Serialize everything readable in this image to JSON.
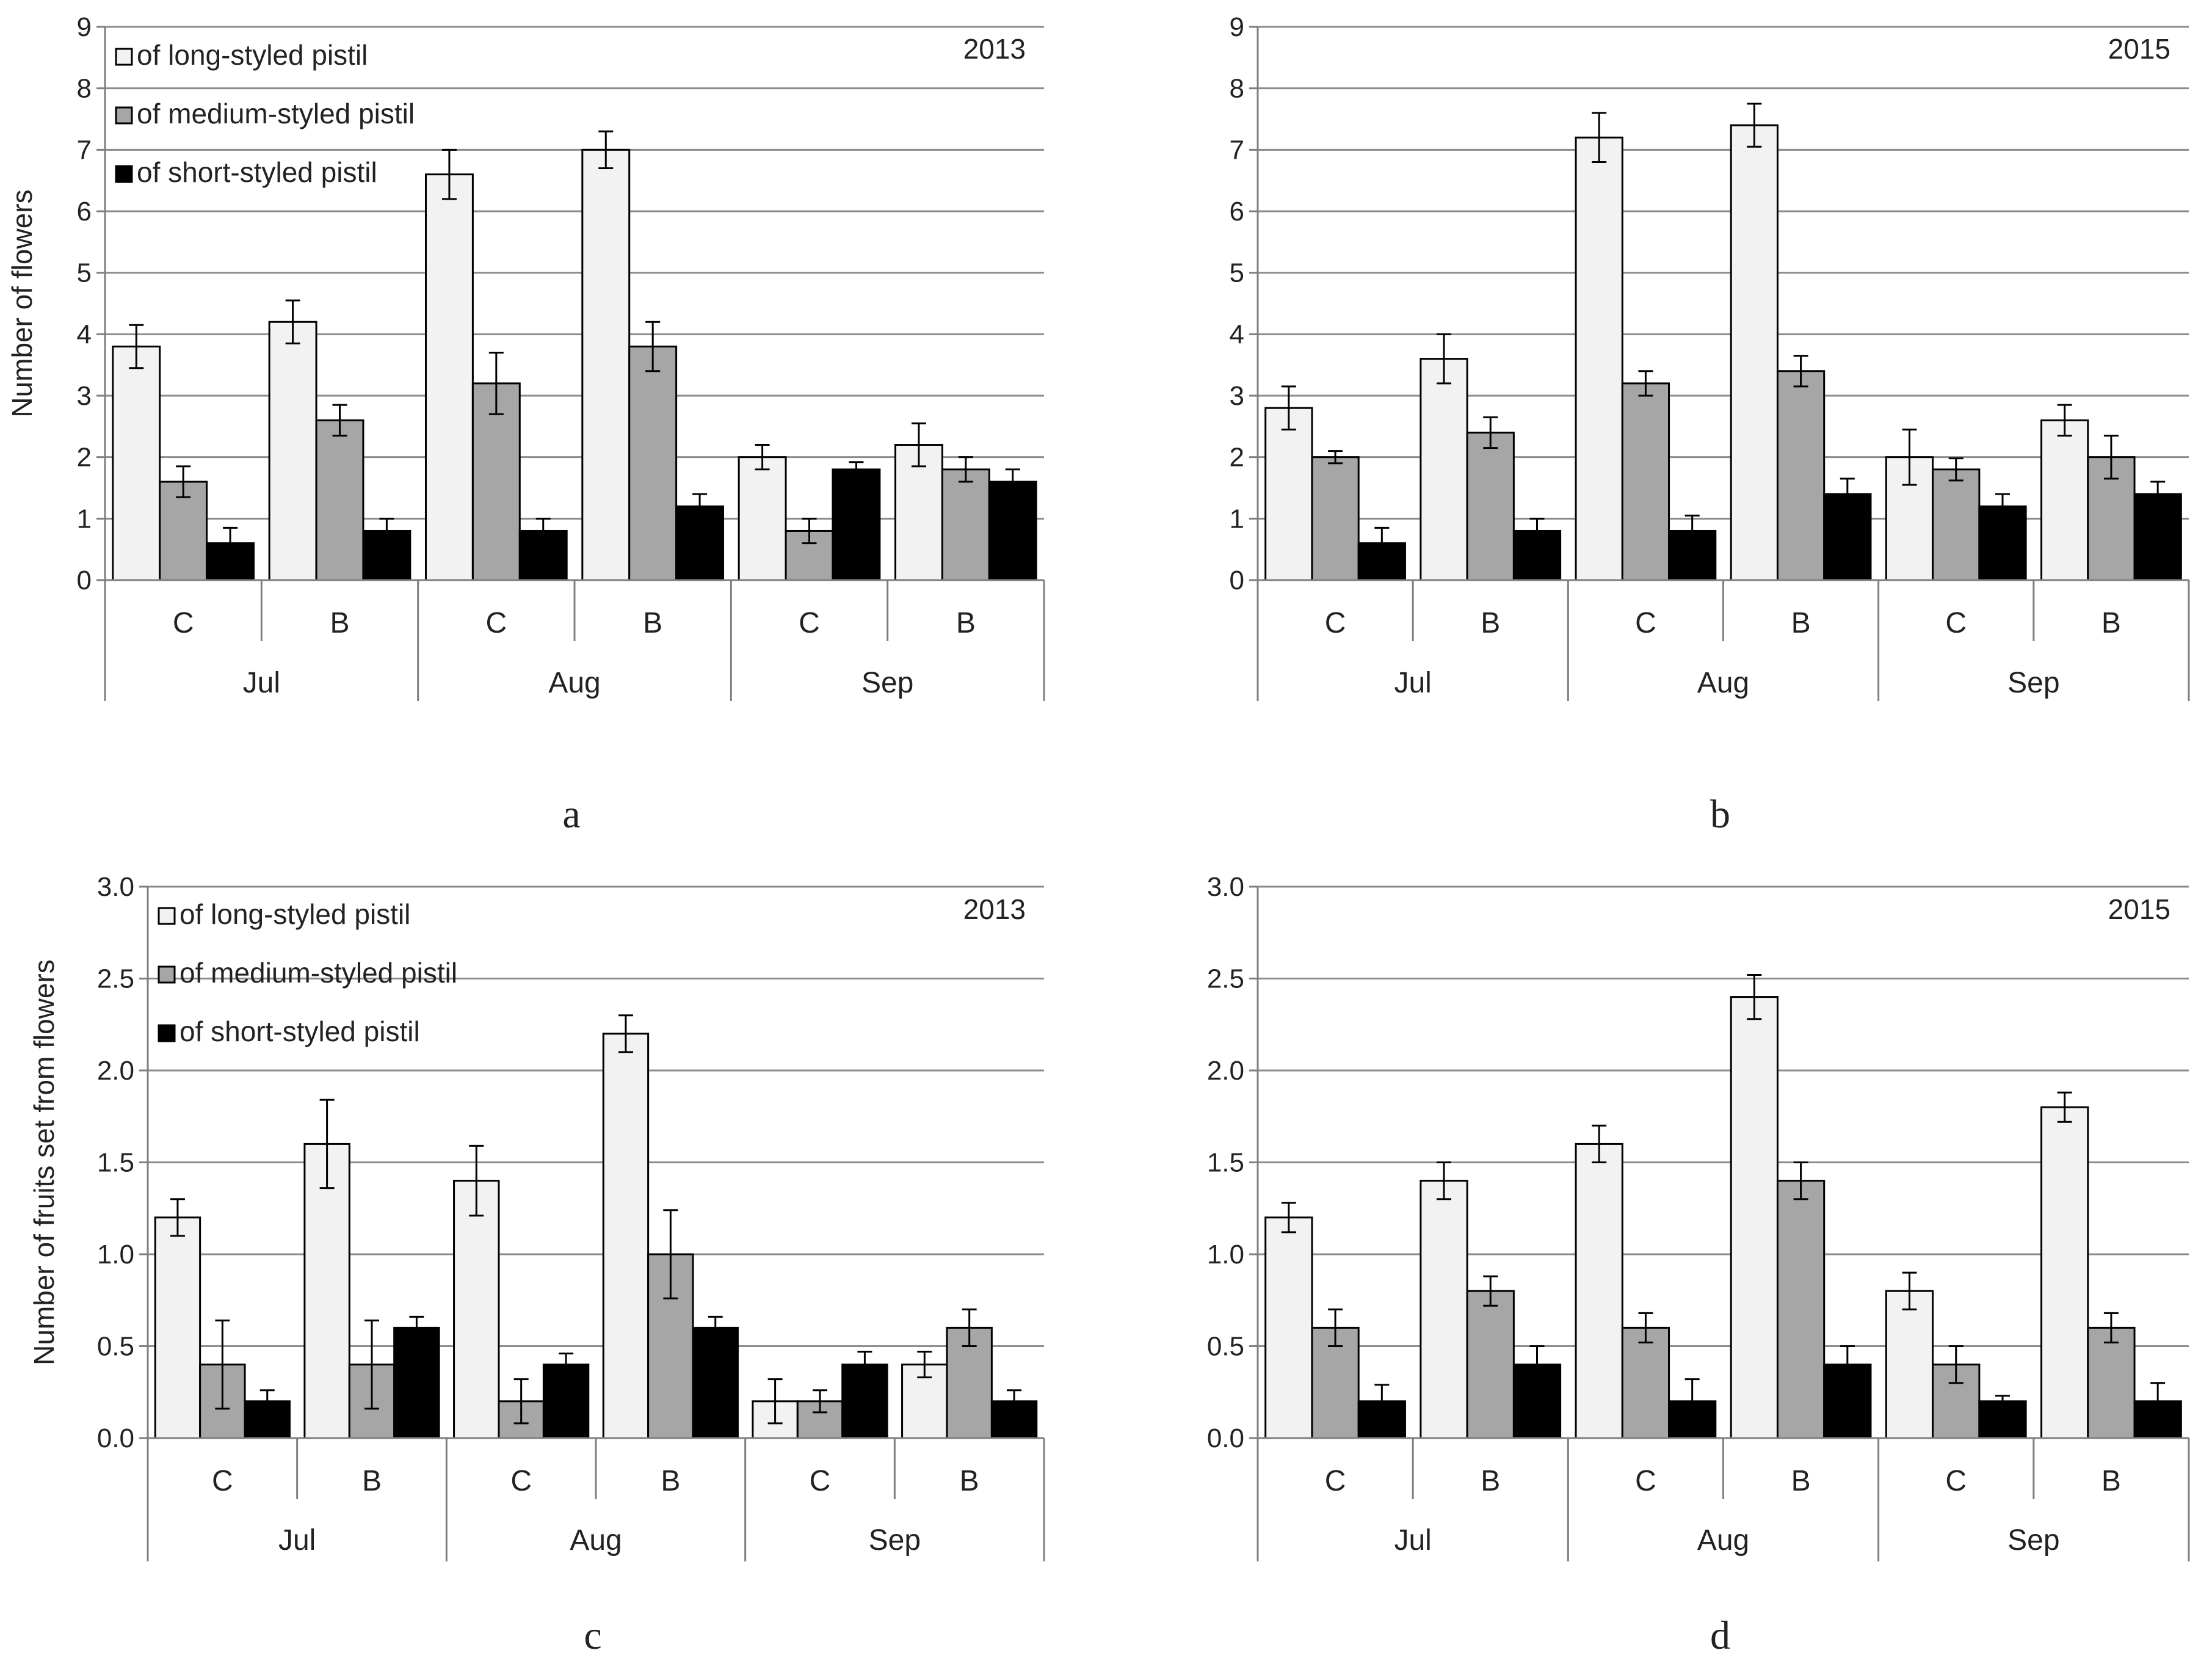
{
  "colors": {
    "long": "#f2f2f2",
    "medium": "#a6a6a6",
    "short": "#000000",
    "grid": "#8c8c8c",
    "axis": "#7f7f7f"
  },
  "legend": [
    "of long-styled pistil",
    "of medium-styled pistil",
    "of short-styled pistil"
  ],
  "chart_data": [
    {
      "type": "bar",
      "panel": "a",
      "year": "2013",
      "ylabel": "Number of flowers",
      "ylim": [
        0,
        9
      ],
      "yticks": [
        "0",
        "1",
        "2",
        "3",
        "4",
        "5",
        "6",
        "7",
        "8",
        "9"
      ],
      "months": [
        "Jul",
        "Aug",
        "Sep"
      ],
      "categories": [
        "C",
        "B",
        "C",
        "B",
        "C",
        "B"
      ],
      "series": [
        {
          "name": "of long-styled pistil",
          "values": [
            3.8,
            4.2,
            6.6,
            7.0,
            2.0,
            2.2
          ],
          "errors": [
            0.35,
            0.35,
            0.4,
            0.3,
            0.2,
            0.35
          ]
        },
        {
          "name": "of medium-styled pistil",
          "values": [
            1.6,
            2.6,
            3.2,
            3.8,
            0.8,
            1.8
          ],
          "errors": [
            0.25,
            0.25,
            0.5,
            0.4,
            0.2,
            0.2
          ]
        },
        {
          "name": "of short-styled pistil",
          "values": [
            0.6,
            0.8,
            0.8,
            1.2,
            1.8,
            1.6
          ],
          "errors": [
            0.25,
            0.2,
            0.2,
            0.2,
            0.12,
            0.2
          ]
        }
      ]
    },
    {
      "type": "bar",
      "panel": "b",
      "year": "2015",
      "ylabel": "",
      "ylim": [
        0,
        9
      ],
      "yticks": [
        "0",
        "1",
        "2",
        "3",
        "4",
        "5",
        "6",
        "7",
        "8",
        "9"
      ],
      "months": [
        "Jul",
        "Aug",
        "Sep"
      ],
      "categories": [
        "C",
        "B",
        "C",
        "B",
        "C",
        "B"
      ],
      "series": [
        {
          "name": "of long-styled pistil",
          "values": [
            2.8,
            3.6,
            7.2,
            7.4,
            2.0,
            2.6
          ],
          "errors": [
            0.35,
            0.4,
            0.4,
            0.35,
            0.45,
            0.25
          ]
        },
        {
          "name": "of medium-styled pistil",
          "values": [
            2.0,
            2.4,
            3.2,
            3.4,
            1.8,
            2.0
          ],
          "errors": [
            0.1,
            0.25,
            0.2,
            0.25,
            0.18,
            0.35
          ]
        },
        {
          "name": "of short-styled pistil",
          "values": [
            0.6,
            0.8,
            0.8,
            1.4,
            1.2,
            1.4
          ],
          "errors": [
            0.25,
            0.2,
            0.25,
            0.25,
            0.2,
            0.2
          ]
        }
      ]
    },
    {
      "type": "bar",
      "panel": "c",
      "year": "2013",
      "ylabel": "Number of fruits set from flowers",
      "ylim": [
        0,
        3
      ],
      "yticks": [
        "0.0",
        "0.5",
        "1.0",
        "1.5",
        "2.0",
        "2.5",
        "3.0"
      ],
      "months": [
        "Jul",
        "Aug",
        "Sep"
      ],
      "categories": [
        "C",
        "B",
        "C",
        "B",
        "C",
        "B"
      ],
      "series": [
        {
          "name": "of long-styled pistil",
          "values": [
            1.2,
            1.6,
            1.4,
            2.2,
            0.2,
            0.4
          ],
          "errors": [
            0.1,
            0.24,
            0.19,
            0.1,
            0.12,
            0.07
          ]
        },
        {
          "name": "of medium-styled pistil",
          "values": [
            0.4,
            0.4,
            0.2,
            1.0,
            0.2,
            0.6
          ],
          "errors": [
            0.24,
            0.24,
            0.12,
            0.24,
            0.06,
            0.1
          ]
        },
        {
          "name": "of short-styled pistil",
          "values": [
            0.2,
            0.6,
            0.4,
            0.6,
            0.4,
            0.2
          ],
          "errors": [
            0.06,
            0.06,
            0.06,
            0.06,
            0.07,
            0.06
          ]
        }
      ]
    },
    {
      "type": "bar",
      "panel": "d",
      "year": "2015",
      "ylabel": "",
      "ylim": [
        0,
        3
      ],
      "yticks": [
        "0.0",
        "0.5",
        "1.0",
        "1.5",
        "2.0",
        "2.5",
        "3.0"
      ],
      "months": [
        "Jul",
        "Aug",
        "Sep"
      ],
      "categories": [
        "C",
        "B",
        "C",
        "B",
        "C",
        "B"
      ],
      "series": [
        {
          "name": "of long-styled pistil",
          "values": [
            1.2,
            1.4,
            1.6,
            2.4,
            0.8,
            1.8
          ],
          "errors": [
            0.08,
            0.1,
            0.1,
            0.12,
            0.1,
            0.08
          ]
        },
        {
          "name": "of medium-styled pistil",
          "values": [
            0.6,
            0.8,
            0.6,
            1.4,
            0.4,
            0.6
          ],
          "errors": [
            0.1,
            0.08,
            0.08,
            0.1,
            0.1,
            0.08
          ]
        },
        {
          "name": "of short-styled pistil",
          "values": [
            0.2,
            0.4,
            0.2,
            0.4,
            0.2,
            0.2
          ],
          "errors": [
            0.09,
            0.1,
            0.12,
            0.1,
            0.03,
            0.1
          ]
        }
      ]
    }
  ]
}
